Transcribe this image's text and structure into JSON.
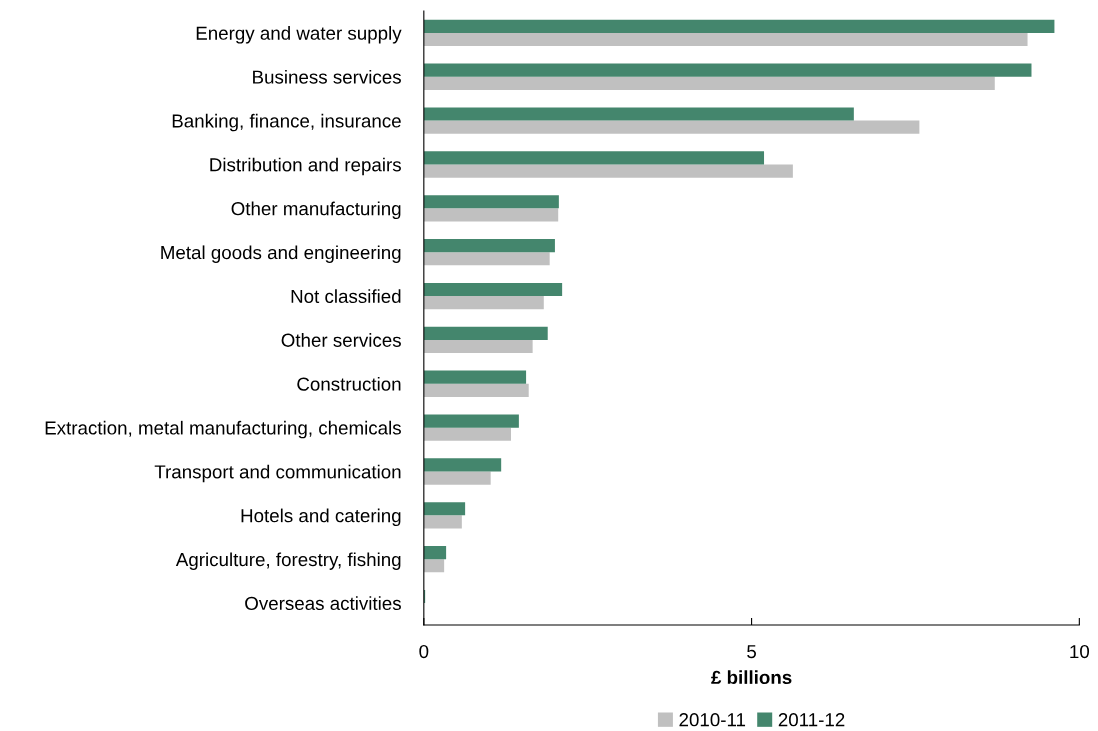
{
  "chart_data": {
    "type": "bar",
    "orientation": "horizontal",
    "xlabel": "£ billions",
    "categories": [
      "Energy and water supply",
      "Business services",
      "Banking, finance, insurance",
      "Distribution and repairs",
      "Other manufacturing",
      "Metal goods and engineering",
      "Not classified",
      "Other services",
      "Construction",
      "Extraction, metal manufacturing, chemicals",
      "Transport and communication",
      "Hotels and catering",
      "Agriculture, forestry, fishing",
      "Overseas activities"
    ],
    "series": [
      {
        "name": "2010-11",
        "color": "#c0c0c0",
        "values": [
          9.21,
          8.71,
          7.56,
          5.63,
          2.05,
          1.92,
          1.83,
          1.66,
          1.6,
          1.33,
          1.02,
          0.58,
          0.31,
          0.0
        ]
      },
      {
        "name": "2011-12",
        "color": "#44866d",
        "values": [
          9.62,
          9.27,
          6.56,
          5.19,
          2.06,
          2.0,
          2.11,
          1.89,
          1.56,
          1.45,
          1.18,
          0.63,
          0.34,
          0.02
        ]
      }
    ],
    "xlim": [
      0,
      10
    ],
    "xticks": [
      0,
      5,
      10
    ],
    "grid": false,
    "legend": "bottom"
  }
}
